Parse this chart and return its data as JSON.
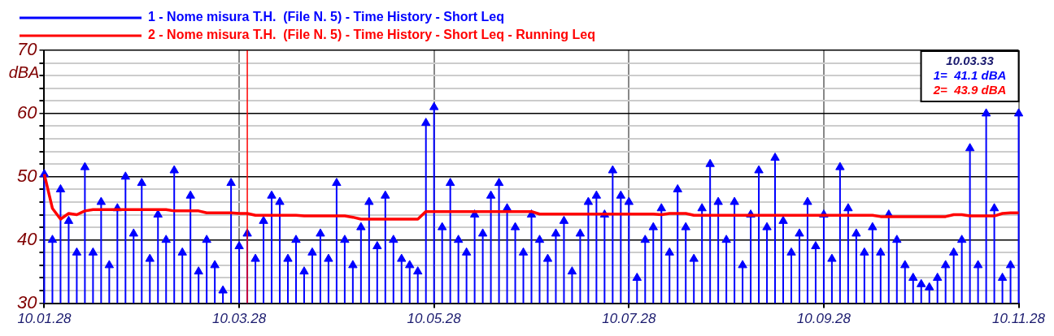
{
  "chart_data": {
    "type": "lollipop",
    "ylabel": "dBA",
    "marker": "triangle",
    "grid": true,
    "legend": "top",
    "ylim": [
      30,
      70
    ],
    "yticks": [
      30,
      {
        "value": 32,
        "label": null
      },
      {
        "value": 34,
        "label": null
      },
      {
        "value": 36,
        "label": null
      },
      {
        "value": 38,
        "label": null
      },
      40,
      {
        "value": 42,
        "label": null
      },
      {
        "value": 44,
        "label": null
      },
      {
        "value": 46,
        "label": null
      },
      {
        "value": 48,
        "label": null
      },
      50,
      {
        "value": 52,
        "label": null
      },
      {
        "value": 54,
        "label": null
      },
      {
        "value": 56,
        "label": null
      },
      {
        "value": 58,
        "label": null
      },
      60,
      {
        "value": 62,
        "label": null
      },
      {
        "value": 64,
        "label": null
      },
      {
        "value": 66,
        "label": null
      },
      {
        "value": 68,
        "label": null
      },
      70
    ],
    "categories": [
      "10.01.28",
      null,
      null,
      null,
      null,
      null,
      null,
      null,
      null,
      null,
      null,
      null,
      null,
      null,
      null,
      null,
      null,
      null,
      null,
      null,
      null,
      null,
      null,
      null,
      "10.03.28",
      null,
      null,
      null,
      null,
      null,
      null,
      null,
      null,
      null,
      null,
      null,
      null,
      null,
      null,
      null,
      null,
      null,
      null,
      null,
      null,
      null,
      null,
      null,
      "10.05.28",
      null,
      null,
      null,
      null,
      null,
      null,
      null,
      null,
      null,
      null,
      null,
      null,
      null,
      null,
      null,
      null,
      null,
      null,
      null,
      null,
      null,
      null,
      null,
      "10.07.28",
      null,
      null,
      null,
      null,
      null,
      null,
      null,
      null,
      null,
      null,
      null,
      null,
      null,
      null,
      null,
      null,
      null,
      null,
      null,
      null,
      null,
      null,
      null,
      "10.09.28",
      null,
      null,
      null,
      null,
      null,
      null,
      null,
      null,
      null,
      null,
      null,
      null,
      null,
      null,
      null,
      null,
      null,
      null,
      null,
      null,
      null,
      null,
      null,
      "10.11.28"
    ],
    "series": [
      {
        "name": "1 - Nome misura T.H.  (File N. 5) - Time History - Short Leq",
        "color": "#0000ff",
        "values": [
          50.4,
          40,
          48,
          43,
          38,
          51.5,
          38,
          46,
          36,
          45,
          50,
          41,
          49,
          37,
          44,
          40,
          51,
          38,
          47,
          35,
          40,
          36,
          32,
          49,
          39,
          41,
          37,
          43,
          47,
          46,
          37,
          40,
          35,
          38,
          41,
          37,
          49,
          40,
          36,
          42,
          46,
          39,
          47,
          40,
          37,
          36,
          35,
          58.5,
          61,
          42,
          49,
          40,
          38,
          44,
          41,
          47,
          49,
          45,
          42,
          38,
          44,
          40,
          37,
          41,
          43,
          35,
          41,
          46,
          47,
          44,
          51,
          47,
          46,
          34,
          40,
          42,
          45,
          38,
          48,
          42,
          37,
          45,
          52,
          46,
          40,
          46,
          36,
          44,
          51,
          42,
          53,
          43,
          38,
          41,
          46,
          39,
          44,
          37,
          51.5,
          45,
          41,
          38,
          42,
          38,
          44,
          40,
          36,
          34,
          33,
          32.5,
          34,
          36,
          38,
          40,
          54.5,
          36,
          60,
          45,
          34,
          36,
          60
        ]
      },
      {
        "name": "2 - Nome misura T.H.  (File N. 5) - Time History - Short Leq - Running Leq",
        "color": "#ff0000",
        "type": "line",
        "marker": "none",
        "values": [
          50.4,
          45,
          43.3,
          44.2,
          44,
          44.6,
          44.8,
          44.8,
          44.8,
          44.8,
          44.8,
          44.8,
          44.8,
          44.8,
          44.8,
          44.8,
          44.6,
          44.6,
          44.6,
          44.6,
          44.3,
          44.3,
          44.3,
          44.3,
          44.2,
          44.2,
          43.9,
          43.9,
          43.9,
          43.9,
          43.9,
          43.9,
          43.8,
          43.8,
          43.8,
          43.8,
          43.8,
          43.8,
          43.6,
          43.3,
          43.3,
          43.3,
          43.3,
          43.3,
          43.3,
          43.3,
          43.3,
          44.5,
          44.5,
          44.5,
          44.5,
          44.5,
          44.5,
          44.5,
          44.5,
          44.5,
          44.5,
          44.5,
          44.5,
          44.5,
          44.5,
          44.1,
          44.1,
          44.1,
          44.1,
          44.1,
          44.1,
          44.1,
          44.1,
          44.1,
          44.1,
          44.1,
          44.1,
          44.1,
          44.1,
          44.1,
          44,
          44.2,
          44.2,
          44.2,
          43.9,
          43.9,
          43.9,
          43.9,
          43.9,
          43.9,
          43.9,
          43.9,
          43.9,
          43.9,
          43.9,
          43.9,
          43.9,
          43.9,
          43.9,
          43.9,
          43.9,
          43.9,
          43.9,
          43.9,
          43.9,
          43.9,
          43.9,
          43.7,
          43.7,
          43.7,
          43.7,
          43.7,
          43.7,
          43.7,
          43.7,
          43.7,
          44,
          44,
          43.8,
          43.8,
          43.8,
          43.8,
          44.2,
          44.3,
          44.3
        ]
      }
    ],
    "annotations": [
      "10.03.33",
      "1=  41.1 dBA",
      "2=  43.9 dBA"
    ]
  }
}
